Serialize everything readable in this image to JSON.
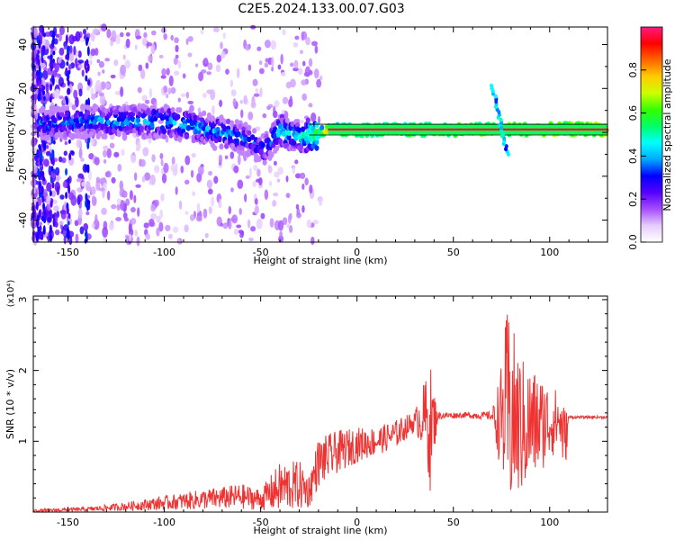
{
  "title": "C2E5.2024.133.00.07.G03",
  "chart_data": [
    {
      "type": "heatmap",
      "xlabel": "Height of straight line (km)",
      "ylabel": "Frequency (Hz)",
      "xlim": [
        -168,
        130
      ],
      "ylim": [
        -50,
        48
      ],
      "xticks": [
        -150,
        -100,
        -50,
        0,
        50,
        100
      ],
      "yticks": [
        -40,
        -20,
        0,
        20,
        40
      ],
      "colorbar": {
        "label": "Normalized spectral amplitude",
        "range": [
          0,
          1
        ],
        "ticks": [
          "0.0",
          "0.2",
          "0.4",
          "0.6",
          "0.8"
        ],
        "tick_values": [
          0,
          0.2,
          0.4,
          0.6,
          0.8
        ],
        "colors": [
          "#ffffff",
          "#e6ccff",
          "#a64dff",
          "#5500ff",
          "#0000ff",
          "#00aaff",
          "#00ffff",
          "#00ff66",
          "#33ff00",
          "#ccff00",
          "#ffcc00",
          "#ff6600",
          "#ff0000",
          "#ff1a80"
        ]
      },
      "band": [
        {
          "x": -160,
          "f": 4,
          "amp": 0.35
        },
        {
          "x": -140,
          "f": 5,
          "amp": 0.38
        },
        {
          "x": -120,
          "f": 5,
          "amp": 0.4
        },
        {
          "x": -100,
          "f": 5,
          "amp": 0.42
        },
        {
          "x": -85,
          "f": 3,
          "amp": 0.4
        },
        {
          "x": -70,
          "f": 0,
          "amp": 0.4
        },
        {
          "x": -55,
          "f": -4,
          "amp": 0.35
        },
        {
          "x": -48,
          "f": -8,
          "amp": 0.35
        },
        {
          "x": -40,
          "f": 1,
          "amp": 0.45
        },
        {
          "x": -30,
          "f": -2,
          "amp": 0.45
        },
        {
          "x": -22,
          "f": -1,
          "amp": 0.6
        },
        {
          "x": -15,
          "f": 1,
          "amp": 0.8
        },
        {
          "x": 130,
          "f": 1.5,
          "amp": 0.95
        }
      ]
    },
    {
      "type": "line",
      "xlabel": "Height of straight line (km)",
      "ylabel": "SNR (10 * v/v)",
      "yscale_label": "(x10⁴)",
      "xlim": [
        -168,
        130
      ],
      "ylim": [
        0,
        3.05
      ],
      "xticks": [
        -150,
        -100,
        -50,
        0,
        50,
        100
      ],
      "yticks": [
        1,
        2,
        3
      ],
      "color": "#ee3333",
      "envelope": [
        {
          "x": -168,
          "mean": 0.02,
          "amp": 0.02
        },
        {
          "x": -140,
          "mean": 0.04,
          "amp": 0.03
        },
        {
          "x": -120,
          "mean": 0.08,
          "amp": 0.06
        },
        {
          "x": -100,
          "mean": 0.13,
          "amp": 0.1
        },
        {
          "x": -80,
          "mean": 0.18,
          "amp": 0.14
        },
        {
          "x": -60,
          "mean": 0.22,
          "amp": 0.18
        },
        {
          "x": -50,
          "mean": 0.18,
          "amp": 0.15
        },
        {
          "x": -40,
          "mean": 0.35,
          "amp": 0.35
        },
        {
          "x": -30,
          "mean": 0.38,
          "amp": 0.35
        },
        {
          "x": -25,
          "mean": 0.3,
          "amp": 0.25
        },
        {
          "x": -20,
          "mean": 0.7,
          "amp": 0.35
        },
        {
          "x": -10,
          "mean": 0.85,
          "amp": 0.3
        },
        {
          "x": 0,
          "mean": 0.95,
          "amp": 0.25
        },
        {
          "x": 10,
          "mean": 1.0,
          "amp": 0.2
        },
        {
          "x": 20,
          "mean": 1.1,
          "amp": 0.2
        },
        {
          "x": 30,
          "mean": 1.28,
          "amp": 0.15
        },
        {
          "x": 35,
          "mean": 1.35,
          "amp": 0.5
        },
        {
          "x": 38,
          "mean": 1.2,
          "amp": 0.9
        },
        {
          "x": 42,
          "mean": 1.36,
          "amp": 0.05
        },
        {
          "x": 55,
          "mean": 1.37,
          "amp": 0.04
        },
        {
          "x": 70,
          "mean": 1.36,
          "amp": 0.06
        },
        {
          "x": 75,
          "mean": 1.3,
          "amp": 0.8
        },
        {
          "x": 78,
          "mean": 1.4,
          "amp": 1.5
        },
        {
          "x": 85,
          "mean": 1.2,
          "amp": 1.0
        },
        {
          "x": 95,
          "mean": 1.25,
          "amp": 0.7
        },
        {
          "x": 105,
          "mean": 1.3,
          "amp": 0.4
        },
        {
          "x": 108,
          "mean": 1.0,
          "amp": 0.5
        },
        {
          "x": 110,
          "mean": 1.34,
          "amp": 0.02
        },
        {
          "x": 130,
          "mean": 1.34,
          "amp": 0.02
        }
      ]
    }
  ]
}
